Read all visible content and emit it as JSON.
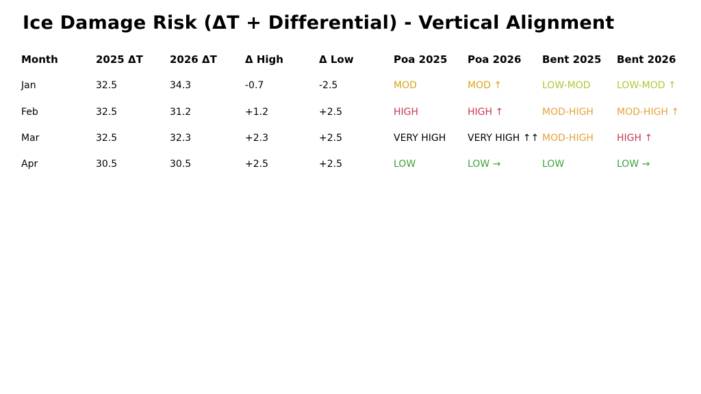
{
  "title": "Ice Damage Risk (ΔT + Differential) - Vertical Alignment",
  "palette": {
    "black": "#000000",
    "green": "#3CA43C",
    "yellow_green": "#B2C53A",
    "gold": "#DAA520",
    "orange": "#E2A33C",
    "red": "#C63A50"
  },
  "table": {
    "headers": [
      "Month",
      "2025 ΔT",
      "2026 ΔT",
      "Δ High",
      "Δ Low",
      "Poa 2025",
      "Poa 2026",
      "Bent 2025",
      "Bent 2026"
    ],
    "rows": [
      {
        "cells": [
          {
            "text": "Jan",
            "color": "#000000"
          },
          {
            "text": "32.5",
            "color": "#000000"
          },
          {
            "text": "34.3",
            "color": "#000000"
          },
          {
            "text": "-0.7",
            "color": "#000000"
          },
          {
            "text": "-2.5",
            "color": "#000000"
          },
          {
            "text": "MOD",
            "color": "#DAA520"
          },
          {
            "text": "MOD ↑",
            "color": "#DAA520"
          },
          {
            "text": "LOW-MOD",
            "color": "#B2C53A"
          },
          {
            "text": "LOW-MOD ↑",
            "color": "#B2C53A"
          }
        ]
      },
      {
        "cells": [
          {
            "text": "Feb",
            "color": "#000000"
          },
          {
            "text": "32.5",
            "color": "#000000"
          },
          {
            "text": "31.2",
            "color": "#000000"
          },
          {
            "text": "+1.2",
            "color": "#000000"
          },
          {
            "text": "+2.5",
            "color": "#000000"
          },
          {
            "text": "HIGH",
            "color": "#C63A50"
          },
          {
            "text": "HIGH ↑",
            "color": "#C63A50"
          },
          {
            "text": "MOD-HIGH",
            "color": "#E2A33C"
          },
          {
            "text": "MOD-HIGH ↑",
            "color": "#E2A33C"
          }
        ]
      },
      {
        "cells": [
          {
            "text": "Mar",
            "color": "#000000"
          },
          {
            "text": "32.5",
            "color": "#000000"
          },
          {
            "text": "32.3",
            "color": "#000000"
          },
          {
            "text": "+2.3",
            "color": "#000000"
          },
          {
            "text": "+2.5",
            "color": "#000000"
          },
          {
            "text": "VERY HIGH",
            "color": "#000000"
          },
          {
            "text": "VERY HIGH ↑↑",
            "color": "#000000"
          },
          {
            "text": "MOD-HIGH",
            "color": "#E2A33C"
          },
          {
            "text": "HIGH ↑",
            "color": "#C63A50"
          }
        ]
      },
      {
        "cells": [
          {
            "text": "Apr",
            "color": "#000000"
          },
          {
            "text": "30.5",
            "color": "#000000"
          },
          {
            "text": "30.5",
            "color": "#000000"
          },
          {
            "text": "+2.5",
            "color": "#000000"
          },
          {
            "text": "+2.5",
            "color": "#000000"
          },
          {
            "text": "LOW",
            "color": "#3CA43C"
          },
          {
            "text": "LOW →",
            "color": "#3CA43C"
          },
          {
            "text": "LOW",
            "color": "#3CA43C"
          },
          {
            "text": "LOW →",
            "color": "#3CA43C"
          }
        ]
      }
    ]
  },
  "chart_data": {
    "type": "table",
    "title": "Ice Damage Risk (ΔT + Differential) - Vertical Alignment",
    "columns": [
      "Month",
      "2025 ΔT",
      "2026 ΔT",
      "Δ High",
      "Δ Low",
      "Poa 2025",
      "Poa 2026",
      "Bent 2025",
      "Bent 2026"
    ],
    "rows": [
      [
        "Jan",
        "32.5",
        "34.3",
        "-0.7",
        "-2.5",
        "MOD",
        "MOD ↑",
        "LOW-MOD",
        "LOW-MOD ↑"
      ],
      [
        "Feb",
        "32.5",
        "31.2",
        "+1.2",
        "+2.5",
        "HIGH",
        "HIGH ↑",
        "MOD-HIGH",
        "MOD-HIGH ↑"
      ],
      [
        "Mar",
        "32.5",
        "32.3",
        "+2.3",
        "+2.5",
        "VERY HIGH",
        "VERY HIGH ↑↑",
        "MOD-HIGH",
        "HIGH ↑"
      ],
      [
        "Apr",
        "30.5",
        "30.5",
        "+2.5",
        "+2.5",
        "LOW",
        "LOW →",
        "LOW",
        "LOW →"
      ]
    ],
    "risk_color_legend": {
      "LOW": "#3CA43C",
      "LOW-MOD": "#B2C53A",
      "MOD": "#DAA520",
      "MOD-HIGH": "#E2A33C",
      "HIGH": "#C63A50",
      "VERY HIGH": "#000000"
    },
    "layout": "left-aligned columns, no gridlines, white background"
  }
}
